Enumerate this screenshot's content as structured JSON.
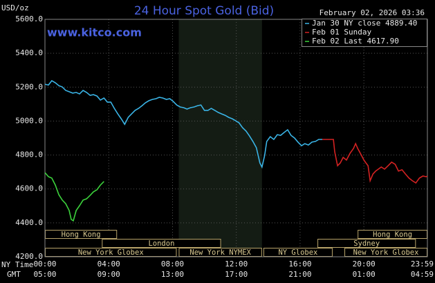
{
  "chart_data": {
    "type": "line",
    "title": "24 Hour Spot Gold (Bid)",
    "subtitle": "February 02, 2026 03:36",
    "watermark": "www.kitco.com",
    "y_axis_label": "USD/oz",
    "x_axis_labels": [
      "NY Time",
      "GMT"
    ],
    "xlim": [
      0,
      23.983
    ],
    "xticks": [
      {
        "value": 0,
        "label": "00:00"
      },
      {
        "value": 4,
        "label": "04:00"
      },
      {
        "value": 8,
        "label": "08:00"
      },
      {
        "value": 12,
        "label": "12:00"
      },
      {
        "value": 16,
        "label": "16:00"
      },
      {
        "value": 20,
        "label": "20:00"
      },
      {
        "value": 23.983,
        "label": "23:59"
      }
    ],
    "gmt_labels": [
      "05:00",
      "09:00",
      "13:00",
      "17:00",
      "21:00",
      "01:00",
      "04:59"
    ],
    "ylim": [
      4200,
      5600
    ],
    "yticks": [
      {
        "value": 4200,
        "label": "4200.0"
      },
      {
        "value": 4400,
        "label": "4400.0"
      },
      {
        "value": 4600,
        "label": "4600.0"
      },
      {
        "value": 4800,
        "label": "4800.0"
      },
      {
        "value": 5000,
        "label": "5000.0"
      },
      {
        "value": 5200,
        "label": "5200.0"
      },
      {
        "value": 5400,
        "label": "5400.0"
      },
      {
        "value": 5600,
        "label": "5600.0"
      }
    ],
    "grid": true,
    "legend": "top-right",
    "sessions": [
      {
        "label": "Hong Kong",
        "row": 0,
        "start": 0,
        "end": 4.52
      },
      {
        "label": "Hong Kong",
        "row": 0,
        "start": 19.61,
        "end": 23.983
      },
      {
        "label": "London",
        "row": 1,
        "start": 3.57,
        "end": 11.04
      },
      {
        "label": "Sydney",
        "row": 1,
        "start": 17.09,
        "end": 23.26
      },
      {
        "label": "New York Globex",
        "row": 2,
        "start": 0,
        "end": 8.26
      },
      {
        "label": "New York NYMEX",
        "row": 2,
        "start": 8.39,
        "end": 13.61,
        "shaded": true
      },
      {
        "label": "NY Globex",
        "row": 2,
        "start": 13.7,
        "end": 18.04
      },
      {
        "label": "New York Globex",
        "row": 2,
        "start": 18.78,
        "end": 23.983
      }
    ],
    "series": [
      {
        "name": "Jan 30 NY close 4889.40",
        "color": "#3ab4e6",
        "x": [
          0,
          0.22,
          0.43,
          0.65,
          0.87,
          1.09,
          1.3,
          1.52,
          1.74,
          1.96,
          2.17,
          2.39,
          2.61,
          2.83,
          3.04,
          3.26,
          3.48,
          3.7,
          3.91,
          4.13,
          4.35,
          4.57,
          4.78,
          5,
          5.22,
          5.43,
          5.65,
          5.87,
          6.09,
          6.3,
          6.52,
          6.74,
          6.96,
          7.17,
          7.39,
          7.61,
          7.83,
          8.04,
          8.26,
          8.48,
          8.7,
          8.91,
          9.13,
          9.35,
          9.57,
          9.78,
          10,
          10.22,
          10.43,
          10.65,
          10.87,
          11.09,
          11.3,
          11.52,
          11.74,
          11.96,
          12.17,
          12.39,
          12.61,
          12.83,
          13.04,
          13.26,
          13.48,
          13.61,
          13.78,
          13.91,
          14.13,
          14.35,
          14.57,
          14.78,
          15,
          15.22,
          15.43,
          15.65,
          15.87,
          16.09,
          16.3,
          16.52,
          16.74,
          16.96,
          17.17,
          17.39
        ],
        "values": [
          5217,
          5213,
          5238,
          5226,
          5209,
          5201,
          5181,
          5173,
          5165,
          5169,
          5160,
          5181,
          5169,
          5152,
          5156,
          5148,
          5124,
          5136,
          5112,
          5112,
          5075,
          5042,
          5014,
          4981,
          5022,
          5042,
          5063,
          5075,
          5091,
          5108,
          5120,
          5128,
          5132,
          5140,
          5136,
          5128,
          5132,
          5116,
          5095,
          5083,
          5079,
          5071,
          5079,
          5083,
          5091,
          5095,
          5063,
          5063,
          5075,
          5063,
          5051,
          5042,
          5034,
          5022,
          5014,
          5002,
          4990,
          4961,
          4941,
          4912,
          4880,
          4843,
          4753,
          4729,
          4798,
          4880,
          4908,
          4892,
          4920,
          4916,
          4933,
          4949,
          4916,
          4900,
          4876,
          4855,
          4867,
          4859,
          4876,
          4880,
          4892,
          4892
        ]
      },
      {
        "name": "Feb 01 Sunday",
        "color": "#d42222",
        "x": [
          17.39,
          18.09,
          18.17,
          18.35,
          18.52,
          18.7,
          18.91,
          19.13,
          19.35,
          19.48,
          19.61,
          19.78,
          20,
          20.13,
          20.26,
          20.39,
          20.57,
          20.74,
          20.91,
          21.09,
          21.3,
          21.52,
          21.74,
          21.96,
          22.17,
          22.39,
          22.61,
          22.83,
          23.04,
          23.26,
          23.48,
          23.7,
          23.91,
          23.98
        ],
        "values": [
          4892,
          4892,
          4819,
          4737,
          4753,
          4786,
          4770,
          4810,
          4839,
          4867,
          4839,
          4810,
          4770,
          4753,
          4737,
          4648,
          4688,
          4705,
          4717,
          4729,
          4717,
          4737,
          4758,
          4745,
          4705,
          4713,
          4688,
          4664,
          4648,
          4635,
          4664,
          4676,
          4672,
          4676
        ]
      },
      {
        "name": "Feb 02 Last 4617.90",
        "color": "#3cd23c",
        "x": [
          0,
          0.22,
          0.43,
          0.65,
          0.87,
          1.09,
          1.3,
          1.52,
          1.65,
          1.78,
          1.96,
          2.17,
          2.39,
          2.61,
          2.83,
          3.04,
          3.26,
          3.48,
          3.7
        ],
        "values": [
          4696,
          4672,
          4664,
          4623,
          4566,
          4534,
          4513,
          4473,
          4420,
          4412,
          4473,
          4501,
          4534,
          4542,
          4562,
          4583,
          4595,
          4623,
          4644
        ]
      }
    ]
  }
}
